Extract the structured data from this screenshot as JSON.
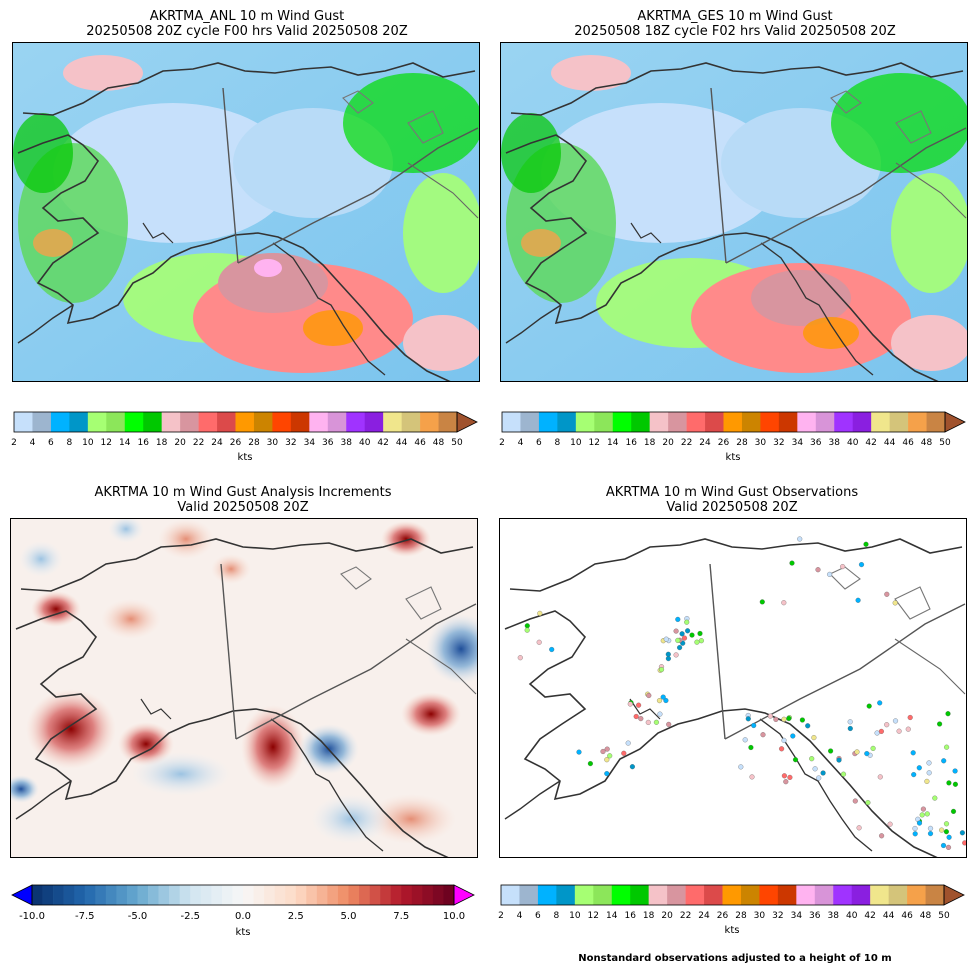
{
  "panels": {
    "anl": {
      "title_line1": "AKRTMA_ANL 10 m Wind Gust",
      "title_line2": "20250508 20Z cycle F00 hrs Valid 20250508 20Z"
    },
    "ges": {
      "title_line1": "AKRTMA_GES 10 m Wind Gust",
      "title_line2": "20250508 18Z cycle F02 hrs Valid 20250508 20Z"
    },
    "inc": {
      "title_line1": "AKRTMA 10 m Wind Gust Analysis Increments",
      "title_line2": "Valid 20250508 20Z"
    },
    "obs": {
      "title_line1": "AKRTMA 10 m Wind Gust Observations",
      "title_line2": "Valid 20250508 20Z"
    }
  },
  "gust_colorbar": {
    "unit": "kts",
    "ticks": [
      "2",
      "4",
      "6",
      "8",
      "10",
      "12",
      "14",
      "16",
      "18",
      "20",
      "22",
      "24",
      "26",
      "28",
      "30",
      "32",
      "34",
      "36",
      "38",
      "40",
      "42",
      "44",
      "46",
      "48",
      "50"
    ],
    "colors": [
      "#c6e0fb",
      "#9db5cf",
      "#00b2ff",
      "#0096c8",
      "#a6ff73",
      "#8ce65a",
      "#00ff00",
      "#00c800",
      "#f5c2c8",
      "#d8959f",
      "#ff6b6b",
      "#dc4a4a",
      "#ff9900",
      "#cc8400",
      "#ff4500",
      "#cc3700",
      "#ffb3f0",
      "#d894d8",
      "#a033ff",
      "#8a1fe0",
      "#f0e68c",
      "#d4c47a",
      "#f5a14a",
      "#c98444"
    ],
    "extend_color": "#a0522d"
  },
  "inc_colorbar": {
    "unit": "kts",
    "ticks": [
      "-10.0",
      "-7.5",
      "-5.0",
      "-2.5",
      "0.0",
      "2.5",
      "5.0",
      "7.5",
      "10.0"
    ],
    "under_color": "#0000ff",
    "over_color": "#ff00ff"
  },
  "footnote": "Nonstandard observations adjusted to a height of 10 m"
}
